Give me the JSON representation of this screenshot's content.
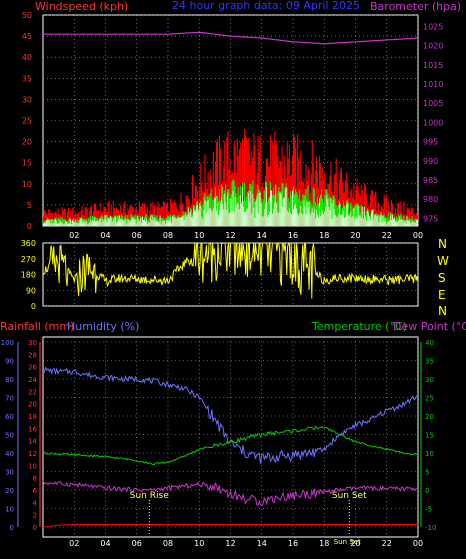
{
  "header": {
    "windspeed_label": "Windspeed (kph)",
    "title": "24 hour graph data: 09 April 2025",
    "barometer_label": "Barometer (hpa)"
  },
  "colors": {
    "background": "#000000",
    "grid": "#aaaaaa",
    "wind": "#ff0000",
    "gust": "#ff0000",
    "wind_avg": "#00ff00",
    "wind_light": "#ffffff",
    "barometer": "#cc33cc",
    "direction": "#ffff00",
    "rain": "#ff0000",
    "humidity": "#7070ff",
    "temperature": "#00cc00",
    "dewpoint": "#cc33cc",
    "title": "#3333ff",
    "axis_yellow": "#ffff00",
    "axis_magenta": "#cc33cc",
    "axis_green": "#00cc00",
    "axis_red": "#ff3333"
  },
  "middle": {
    "compass_labels": [
      "N",
      "W",
      "S",
      "E",
      "N"
    ]
  },
  "bottom_header": {
    "rainfall_label": "Rainfall (mm)",
    "humidity_label": "Humidity (%)",
    "temperature_label": "Temperature (°C)",
    "dewpoint_label": "Dew Point (°C)"
  },
  "annotations": {
    "sunrise": "Sun Rise",
    "sunset": "Sun Set",
    "sunset2": "Sun Set"
  },
  "chart_data": [
    {
      "type": "area",
      "panel": "wind_barometer",
      "x_ticks": [
        "02",
        "04",
        "06",
        "08",
        "10",
        "12",
        "14",
        "16",
        "18",
        "20",
        "22",
        "00"
      ],
      "left_axis": {
        "label": "Windspeed (kph)",
        "ticks": [
          0,
          5,
          10,
          15,
          20,
          25,
          30,
          35,
          40,
          45,
          50
        ],
        "ylim": [
          0,
          50
        ]
      },
      "right_axis": {
        "label": "Barometer (hpa)",
        "ticks": [
          975,
          980,
          985,
          990,
          995,
          1000,
          1005,
          1010,
          1015,
          1020,
          1025
        ],
        "ylim": [
          973,
          1028
        ]
      },
      "series": [
        {
          "name": "Windspeed (kph)",
          "x_hours": [
            0,
            2,
            4,
            6,
            8,
            9,
            10,
            11,
            12,
            13,
            14,
            15,
            16,
            17,
            18,
            19,
            20,
            21,
            22,
            23,
            24
          ],
          "values": [
            3,
            3,
            4,
            4,
            4,
            6,
            10,
            14,
            16,
            16,
            15,
            15,
            15,
            14,
            13,
            10,
            8,
            6,
            5,
            4,
            3
          ]
        },
        {
          "name": "Barometer (hpa)",
          "x_hours": [
            0,
            2,
            4,
            6,
            8,
            10,
            11,
            12,
            14,
            16,
            18,
            20,
            22,
            24
          ],
          "values": [
            1023,
            1023,
            1023,
            1023,
            1023,
            1023.5,
            1023,
            1022.5,
            1022,
            1021,
            1020.5,
            1021,
            1021.5,
            1022
          ]
        }
      ]
    },
    {
      "type": "line",
      "panel": "wind_direction",
      "x_ticks": [
        "02",
        "04",
        "06",
        "08",
        "10",
        "12",
        "14",
        "16",
        "18",
        "20",
        "22",
        "00"
      ],
      "left_axis": {
        "ticks": [
          0,
          90,
          180,
          270,
          360
        ],
        "ylim": [
          0,
          360
        ]
      },
      "series": [
        {
          "name": "Wind Direction",
          "x_hours": [
            0,
            1,
            2,
            3,
            4,
            5,
            6,
            7,
            8,
            9,
            10,
            11,
            12,
            13,
            14,
            15,
            16,
            17,
            18,
            19,
            20,
            21,
            22,
            23,
            24
          ],
          "values": [
            200,
            250,
            150,
            220,
            140,
            160,
            155,
            150,
            145,
            240,
            300,
            320,
            330,
            340,
            320,
            300,
            280,
            200,
            150,
            160,
            160,
            155,
            150,
            150,
            155
          ]
        }
      ]
    },
    {
      "type": "line",
      "panel": "temp_humidity_rain",
      "x_ticks": [
        "02",
        "04",
        "06",
        "08",
        "10",
        "12",
        "14",
        "16",
        "18",
        "20",
        "22",
        "00"
      ],
      "axes": {
        "humidity": {
          "ticks": [
            0,
            10,
            20,
            30,
            40,
            50,
            60,
            70,
            80,
            90,
            100
          ],
          "ylim": [
            0,
            100
          ]
        },
        "rainfall": {
          "ticks": [
            0,
            2,
            4,
            6,
            8,
            10,
            12,
            14,
            16,
            18,
            20,
            22,
            24,
            26,
            28,
            30
          ],
          "ylim": [
            0,
            30
          ]
        },
        "temperature": {
          "ticks": [
            -10,
            -5,
            0,
            5,
            10,
            15,
            20,
            25,
            30,
            35,
            40
          ],
          "ylim": [
            -10,
            40
          ]
        }
      },
      "series": [
        {
          "name": "Humidity (%)",
          "x_hours": [
            0,
            1,
            2,
            3,
            4,
            5,
            6,
            7,
            8,
            9,
            10,
            11,
            12,
            13,
            14,
            15,
            16,
            17,
            18,
            19,
            20,
            21,
            22,
            23,
            24
          ],
          "values": [
            85,
            84,
            84,
            82,
            81,
            80,
            80,
            79,
            77,
            75,
            70,
            58,
            45,
            40,
            37,
            38,
            39,
            40,
            42,
            50,
            55,
            58,
            63,
            66,
            71
          ]
        },
        {
          "name": "Temperature (°C)",
          "x_hours": [
            0,
            2,
            4,
            6,
            7,
            8,
            9,
            10,
            11,
            12,
            13,
            14,
            15,
            16,
            17,
            18,
            19,
            20,
            21,
            22,
            23,
            24
          ],
          "values": [
            10,
            9.5,
            9,
            8,
            7,
            7.5,
            9,
            11,
            12,
            13,
            14,
            15,
            15.5,
            16,
            16.5,
            17,
            15,
            13,
            12,
            11,
            10,
            9.5
          ]
        },
        {
          "name": "Dew Point (°C)",
          "x_hours": [
            0,
            2,
            4,
            6,
            7,
            8,
            9,
            10,
            11,
            12,
            13,
            14,
            15,
            16,
            17,
            18,
            19,
            20,
            21,
            22,
            23,
            24
          ],
          "values": [
            2,
            1.5,
            0.5,
            0,
            0,
            0.5,
            1,
            1.5,
            1,
            -1,
            -2.5,
            -3,
            -2,
            -1.5,
            -1,
            -0.5,
            0,
            0.5,
            0.5,
            0.3,
            0.3,
            0.5
          ]
        },
        {
          "name": "Rainfall (mm)",
          "x_hours": [
            0,
            1,
            2,
            24
          ],
          "values": [
            0,
            0.3,
            0.4,
            0.4
          ]
        }
      ],
      "annotations": [
        {
          "text": "Sun Rise",
          "x_hour": 6.8
        },
        {
          "text": "Sun Set",
          "x_hour": 19.6
        }
      ]
    }
  ]
}
